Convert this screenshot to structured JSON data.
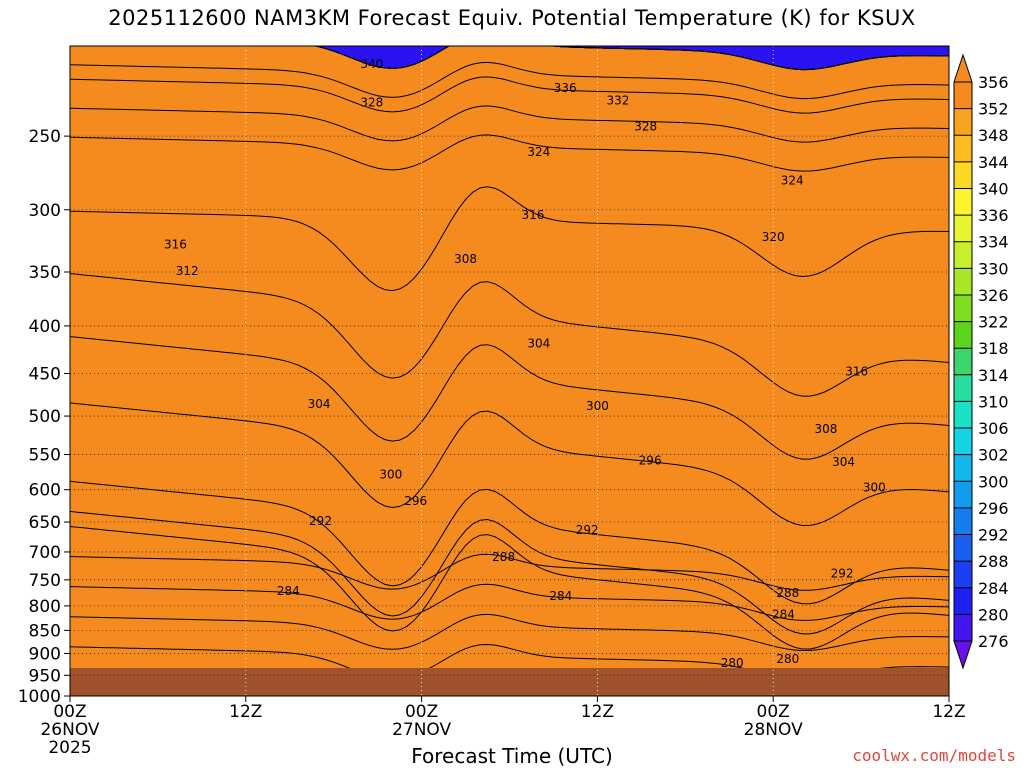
{
  "title": "2025112600 NAM3KM Forecast Equiv. Potential Temperature (K) for KSUX",
  "xlabel": "Forecast Time (UTC)",
  "watermark": "coolwx.com/models",
  "chart_data": {
    "type": "heatmap",
    "title": "2025112600 NAM3KM Forecast Equiv. Potential Temperature (K) for KSUX",
    "xlabel": "Forecast Time (UTC)",
    "ylabel": "",
    "x_ticks": [
      {
        "hour": 0,
        "lines": [
          "00Z",
          "26NOV",
          "2025"
        ]
      },
      {
        "hour": 12,
        "lines": [
          "12Z"
        ]
      },
      {
        "hour": 24,
        "lines": [
          "00Z",
          "27NOV"
        ]
      },
      {
        "hour": 36,
        "lines": [
          "12Z"
        ]
      },
      {
        "hour": 48,
        "lines": [
          "00Z",
          "28NOV"
        ]
      },
      {
        "hour": 60,
        "lines": [
          "12Z"
        ]
      }
    ],
    "y_ticks": [
      250,
      300,
      350,
      400,
      450,
      500,
      550,
      600,
      650,
      700,
      750,
      800,
      850,
      900,
      950,
      1000
    ],
    "xlim_hours": [
      0,
      60
    ],
    "ylim_hpa": [
      200,
      1000
    ],
    "y_scale": "log",
    "grid": "dotted",
    "colorbar": {
      "levels": [
        356,
        352,
        348,
        344,
        340,
        336,
        334,
        330,
        326,
        322,
        318,
        314,
        310,
        306,
        302,
        300,
        296,
        292,
        288,
        284,
        280,
        276
      ],
      "colors": [
        "#f58b1f",
        "#f8a41f",
        "#fbbd22",
        "#fcd826",
        "#fdf42b",
        "#e6f530",
        "#c8ef2b",
        "#a7e727",
        "#7fdd22",
        "#5cd41e",
        "#3bd66b",
        "#26de9e",
        "#1ae0c6",
        "#15d3e6",
        "#12b8ec",
        "#129bef",
        "#167ded",
        "#1a5ff0",
        "#1c3ff2",
        "#1e20f4",
        "#4316f0",
        "#6a10ea"
      ]
    },
    "contour_labels": [
      {
        "v": 340,
        "h": 20.6,
        "p": 209
      },
      {
        "v": 336,
        "h": 33.8,
        "p": 222
      },
      {
        "v": 332,
        "h": 37.4,
        "p": 229
      },
      {
        "v": 328,
        "h": 20.6,
        "p": 230
      },
      {
        "v": 328,
        "h": 39.3,
        "p": 244
      },
      {
        "v": 324,
        "h": 32.0,
        "p": 260
      },
      {
        "v": 324,
        "h": 49.3,
        "p": 279
      },
      {
        "v": 316,
        "h": 31.6,
        "p": 304
      },
      {
        "v": 316,
        "h": 7.2,
        "p": 327
      },
      {
        "v": 320,
        "h": 48.0,
        "p": 321
      },
      {
        "v": 312,
        "h": 8.0,
        "p": 349
      },
      {
        "v": 308,
        "h": 27.0,
        "p": 339
      },
      {
        "v": 304,
        "h": 32.0,
        "p": 418
      },
      {
        "v": 304,
        "h": 17.0,
        "p": 485
      },
      {
        "v": 316,
        "h": 53.7,
        "p": 448
      },
      {
        "v": 300,
        "h": 36.0,
        "p": 488
      },
      {
        "v": 308,
        "h": 51.6,
        "p": 516
      },
      {
        "v": 296,
        "h": 39.6,
        "p": 558
      },
      {
        "v": 304,
        "h": 52.8,
        "p": 560
      },
      {
        "v": 300,
        "h": 21.9,
        "p": 578
      },
      {
        "v": 300,
        "h": 54.9,
        "p": 597
      },
      {
        "v": 296,
        "h": 23.6,
        "p": 617
      },
      {
        "v": 292,
        "h": 17.1,
        "p": 648
      },
      {
        "v": 292,
        "h": 35.3,
        "p": 663
      },
      {
        "v": 288,
        "h": 29.6,
        "p": 709
      },
      {
        "v": 292,
        "h": 52.7,
        "p": 738
      },
      {
        "v": 284,
        "h": 14.9,
        "p": 771
      },
      {
        "v": 284,
        "h": 33.5,
        "p": 781
      },
      {
        "v": 288,
        "h": 49.0,
        "p": 775
      },
      {
        "v": 284,
        "h": 48.7,
        "p": 817
      },
      {
        "v": 280,
        "h": 49.0,
        "p": 912
      },
      {
        "v": 280,
        "h": 45.2,
        "p": 921
      }
    ]
  }
}
